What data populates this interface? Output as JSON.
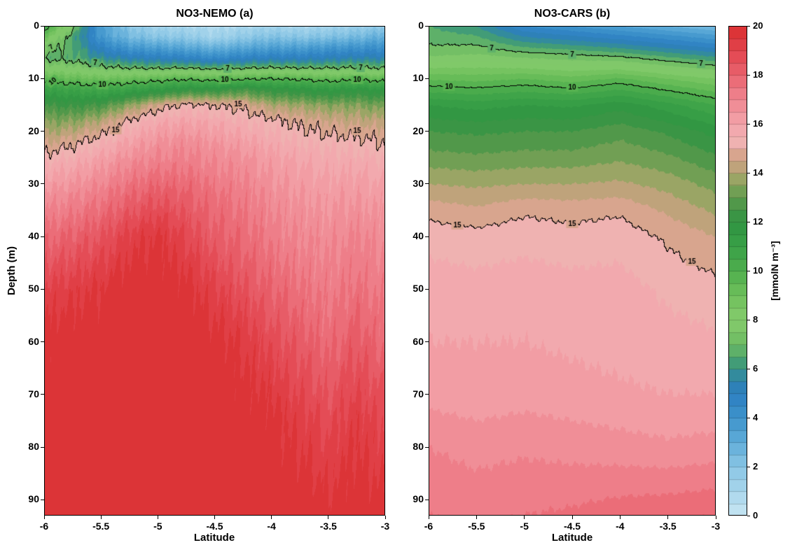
{
  "chart_data": [
    {
      "type": "contourf",
      "panel": "a",
      "title": "NO3-NEMO (a)",
      "xlabel": "Latitude",
      "ylabel": "Depth (m)",
      "xlim": [
        -6,
        -3
      ],
      "ylim": [
        0,
        93
      ],
      "xticks": {
        "values": [
          -6,
          -5.5,
          -5,
          -4.5,
          -4,
          -3.5,
          -3
        ],
        "labels": [
          "-6",
          "-5.5",
          "-5",
          "-4.5",
          "-4",
          "-3.5",
          "-3"
        ]
      },
      "yticks": {
        "values": [
          0,
          10,
          20,
          30,
          40,
          50,
          60,
          70,
          80,
          90
        ],
        "labels": [
          "0",
          "10",
          "20",
          "30",
          "40",
          "50",
          "60",
          "70",
          "80",
          "90"
        ]
      },
      "x": [
        -6,
        -5.75,
        -5.5,
        -5.25,
        -5,
        -4.75,
        -4.5,
        -4.25,
        -4,
        -3.75,
        -3.5,
        -3.25,
        -3
      ],
      "y": [
        0,
        2,
        4,
        6,
        8,
        10,
        12,
        15,
        18,
        22,
        26,
        32,
        40,
        50,
        60,
        75,
        93
      ],
      "values": [
        [
          10.5,
          7.5,
          3.5,
          2.0,
          1.2,
          1.0,
          0.8,
          1.0,
          1.2,
          1.0,
          1.2,
          1.5,
          1.8
        ],
        [
          9.0,
          6.5,
          3.8,
          2.5,
          2.0,
          1.8,
          1.2,
          1.8,
          2.2,
          2.0,
          2.2,
          2.5,
          3.0
        ],
        [
          7.5,
          6.6,
          4.8,
          3.8,
          3.5,
          3.2,
          2.8,
          3.2,
          3.5,
          3.5,
          3.8,
          4.0,
          4.2
        ],
        [
          6.8,
          6.6,
          5.8,
          5.3,
          5.0,
          4.8,
          4.4,
          4.8,
          5.0,
          5.0,
          5.2,
          5.4,
          5.4
        ],
        [
          8.0,
          7.8,
          7.3,
          7.0,
          6.9,
          7.0,
          6.7,
          6.9,
          7.1,
          7.0,
          7.0,
          7.1,
          7.0
        ],
        [
          9.5,
          9.3,
          9.0,
          9.2,
          9.5,
          9.8,
          9.5,
          9.8,
          10.0,
          9.8,
          9.5,
          9.7,
          9.5
        ],
        [
          11.0,
          10.8,
          10.5,
          11.0,
          11.5,
          12.0,
          12.0,
          12.5,
          12.0,
          11.8,
          11.5,
          11.8,
          11.5
        ],
        [
          12.5,
          12.3,
          12.6,
          13.6,
          14.6,
          15.2,
          15.0,
          14.8,
          14.0,
          13.8,
          13.5,
          13.5,
          13.2
        ],
        [
          13.4,
          13.5,
          14.1,
          15.1,
          15.8,
          16.0,
          15.8,
          15.5,
          15.2,
          14.8,
          14.5,
          14.3,
          14.2
        ],
        [
          14.4,
          14.8,
          15.4,
          16.1,
          16.6,
          16.8,
          16.5,
          16.2,
          15.8,
          15.5,
          15.3,
          15.2,
          15.0
        ],
        [
          15.5,
          15.8,
          16.3,
          16.9,
          17.2,
          17.3,
          17.0,
          16.8,
          16.3,
          16.0,
          15.8,
          15.8,
          15.6
        ],
        [
          16.6,
          16.9,
          17.3,
          17.9,
          18.3,
          18.1,
          17.6,
          17.3,
          16.8,
          16.5,
          16.3,
          16.4,
          16.2
        ],
        [
          17.8,
          18.1,
          18.5,
          19.2,
          19.6,
          18.9,
          18.2,
          17.8,
          17.3,
          17.0,
          16.8,
          17.1,
          16.8
        ],
        [
          19.1,
          19.3,
          19.6,
          20.0,
          20.0,
          19.8,
          19.1,
          18.6,
          18.0,
          17.6,
          17.3,
          17.6,
          17.3
        ],
        [
          19.8,
          20.0,
          20.0,
          20.0,
          20.0,
          20.0,
          19.8,
          19.4,
          18.8,
          18.3,
          17.8,
          18.3,
          17.8
        ],
        [
          20.0,
          20.0,
          20.0,
          20.0,
          20.0,
          20.0,
          20.0,
          20.0,
          19.8,
          19.3,
          18.8,
          19.4,
          18.9
        ],
        [
          20.0,
          20.0,
          20.0,
          20.0,
          20.0,
          20.0,
          20.0,
          20.0,
          20.0,
          20.0,
          19.8,
          20.0,
          19.7
        ]
      ],
      "contour_levels": [
        7,
        10,
        15
      ],
      "contour_labels": [
        {
          "level": 10,
          "x": 0.025,
          "rot": -40
        },
        {
          "level": 7,
          "x": 0.02,
          "rot": -35
        },
        {
          "level": 7,
          "x": 0.15
        },
        {
          "level": 10,
          "x": 0.17
        },
        {
          "level": 15,
          "x": 0.21
        },
        {
          "level": 7,
          "x": 0.54
        },
        {
          "level": 10,
          "x": 0.53
        },
        {
          "level": 15,
          "x": 0.57
        },
        {
          "level": 7,
          "x": 0.93
        },
        {
          "level": 10,
          "x": 0.92
        },
        {
          "level": 15,
          "x": 0.92
        }
      ],
      "jitter": 0.4
    },
    {
      "type": "contourf",
      "panel": "b",
      "title": "NO3-CARS (b)",
      "xlabel": "Latitude",
      "ylabel": "",
      "xlim": [
        -6,
        -3
      ],
      "ylim": [
        0,
        93
      ],
      "xticks": {
        "values": [
          -6,
          -5.5,
          -5,
          -4.5,
          -4,
          -3.5,
          -3
        ],
        "labels": [
          "-6",
          "-5.5",
          "-5",
          "-4.5",
          "-4",
          "-3.5",
          "-3"
        ]
      },
      "yticks": {
        "values": [
          0,
          10,
          20,
          30,
          40,
          50,
          60,
          70,
          80,
          90
        ],
        "labels": [
          "0",
          "10",
          "20",
          "30",
          "40",
          "50",
          "60",
          "70",
          "80",
          "90"
        ]
      },
      "x": [
        -6,
        -5.5,
        -5,
        -4.5,
        -4,
        -3.5,
        -3
      ],
      "y": [
        0,
        5,
        10,
        15,
        20,
        25,
        30,
        35,
        40,
        50,
        60,
        70,
        80,
        93
      ],
      "values": [
        [
          6.5,
          6.0,
          4.5,
          4.0,
          3.5,
          3.0,
          2.5
        ],
        [
          7.2,
          7.4,
          7.0,
          6.8,
          6.5,
          6.0,
          5.5
        ],
        [
          9.4,
          9.3,
          9.5,
          9.2,
          9.6,
          9.0,
          8.5
        ],
        [
          11.5,
          11.3,
          11.5,
          11.4,
          11.8,
          11.2,
          10.5
        ],
        [
          12.5,
          12.4,
          12.5,
          12.5,
          12.8,
          12.4,
          11.8
        ],
        [
          13.2,
          13.1,
          13.2,
          13.2,
          13.4,
          13.1,
          12.6
        ],
        [
          14.0,
          13.9,
          14.0,
          14.0,
          14.1,
          13.8,
          13.3
        ],
        [
          14.8,
          14.6,
          14.9,
          14.8,
          14.9,
          14.4,
          13.9
        ],
        [
          15.3,
          15.2,
          15.3,
          15.2,
          15.3,
          14.9,
          14.5
        ],
        [
          15.8,
          15.7,
          15.8,
          15.7,
          15.7,
          15.4,
          15.2
        ],
        [
          16.0,
          16.0,
          16.0,
          15.9,
          15.8,
          15.7,
          15.6
        ],
        [
          16.3,
          16.2,
          16.3,
          16.2,
          16.1,
          16.0,
          16.0
        ],
        [
          17.0,
          16.8,
          16.9,
          16.8,
          16.7,
          16.6,
          16.7
        ],
        [
          17.5,
          17.4,
          17.5,
          17.6,
          17.8,
          17.9,
          18.0
        ]
      ],
      "contour_levels": [
        7,
        10,
        15
      ],
      "contour_labels": [
        {
          "level": 7,
          "x": 0.22
        },
        {
          "level": 7,
          "x": 0.5
        },
        {
          "level": 7,
          "x": 0.95
        },
        {
          "level": 10,
          "x": 0.07
        },
        {
          "level": 10,
          "x": 0.5
        },
        {
          "level": 15,
          "x": 0.1
        },
        {
          "level": 15,
          "x": 0.5
        },
        {
          "level": 15,
          "x": 0.92
        }
      ],
      "jitter": 0.05
    }
  ],
  "colorbar": {
    "min": 0,
    "max": 20,
    "band_step": 0.5,
    "ticks": {
      "values": [
        0,
        2,
        4,
        6,
        8,
        10,
        12,
        14,
        16,
        18,
        20
      ],
      "labels": [
        "0",
        "2",
        "4",
        "6",
        "8",
        "10",
        "12",
        "14",
        "16",
        "18",
        "20"
      ]
    },
    "label": "[mmolN m⁻³]",
    "colormap_stops": [
      [
        0,
        "#c8e6f3"
      ],
      [
        1,
        "#a9d6ec"
      ],
      [
        2,
        "#8ac6e5"
      ],
      [
        3,
        "#60add9"
      ],
      [
        4,
        "#3e94cb"
      ],
      [
        5,
        "#2d7ec2"
      ],
      [
        5.6,
        "#2f86a9"
      ],
      [
        6.2,
        "#3f9a78"
      ],
      [
        7,
        "#6cba62"
      ],
      [
        8,
        "#86cc6d"
      ],
      [
        9,
        "#6fc05b"
      ],
      [
        10,
        "#4fae4d"
      ],
      [
        11,
        "#3aa147"
      ],
      [
        12,
        "#2f9342"
      ],
      [
        13,
        "#5c9a4c"
      ],
      [
        13.6,
        "#8fa55e"
      ],
      [
        14.2,
        "#bca379"
      ],
      [
        14.8,
        "#dba590"
      ],
      [
        15.3,
        "#f1b3b5"
      ],
      [
        16,
        "#f3a4aa"
      ],
      [
        17,
        "#ef8691"
      ],
      [
        18,
        "#e9646f"
      ],
      [
        19,
        "#e2444d"
      ],
      [
        20,
        "#da2e30"
      ]
    ]
  }
}
